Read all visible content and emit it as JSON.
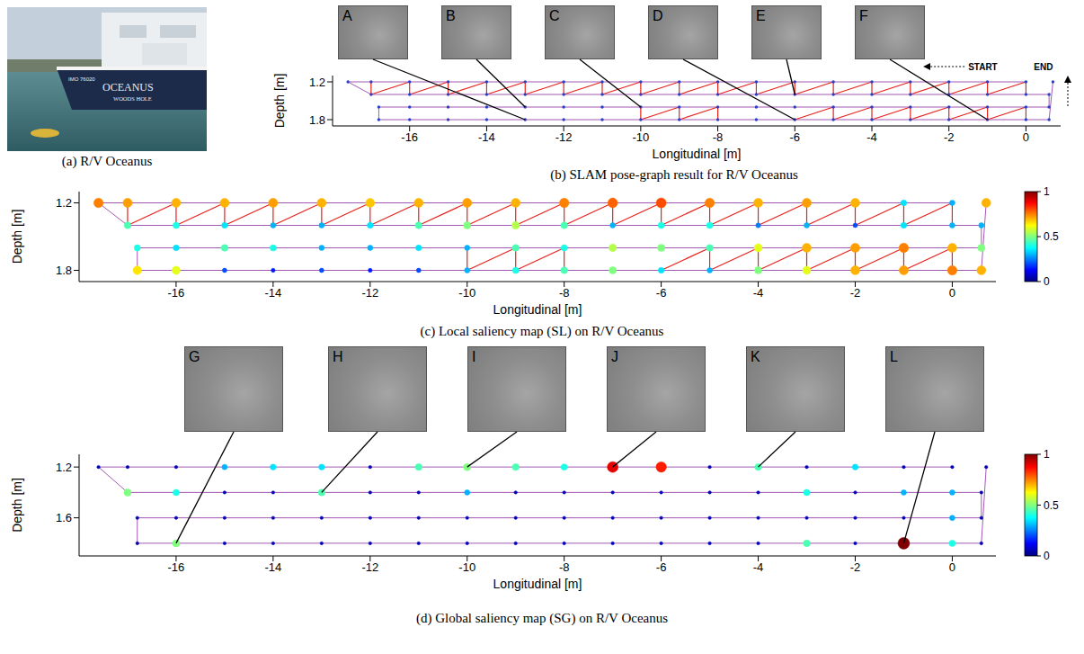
{
  "photo": {
    "caption": "(a) R/V Oceanus",
    "texts": [
      "IMO 76020",
      "OCEANUS",
      "WOODS HOLE"
    ]
  },
  "chart_data": [
    {
      "type": "scatter",
      "caption": "(b) SLAM pose-graph result for R/V Oceanus",
      "x_label": "Longitudinal [m]",
      "y_label": "Depth [m]",
      "xlim": [
        -18,
        0.9
      ],
      "xticks": [
        -16,
        -14,
        -12,
        -10,
        -8,
        -6,
        -4,
        -2,
        0
      ],
      "ylim": [
        1.9,
        1.1
      ],
      "yticks": [
        1.2,
        1.8
      ],
      "x": [
        0,
        -1,
        -2,
        -3,
        -4,
        -5,
        -6,
        -7,
        -8,
        -9,
        -10,
        -11,
        -12,
        -13,
        -14,
        -15,
        -16,
        -17,
        -17.6,
        -17,
        -16,
        -15,
        -14,
        -13,
        -12,
        -11,
        -10,
        -9,
        -8,
        -7,
        -6,
        -5,
        -4,
        -3,
        -2,
        -1,
        0,
        0.6,
        0.6,
        0,
        -1,
        -2,
        -3,
        -4,
        -5,
        -6,
        -7,
        -8,
        -9,
        -10,
        -11,
        -12,
        -13,
        -14,
        -15,
        -16,
        -16.8,
        -16.8,
        -16,
        -15,
        -14,
        -13,
        -12,
        -11,
        -10,
        -9,
        -8,
        -7,
        -6,
        -5,
        -4,
        -3,
        -2,
        -1,
        0,
        0.6,
        0.7
      ],
      "y": [
        1.2,
        1.2,
        1.2,
        1.2,
        1.2,
        1.2,
        1.2,
        1.2,
        1.2,
        1.2,
        1.2,
        1.2,
        1.2,
        1.2,
        1.2,
        1.2,
        1.2,
        1.2,
        1.2,
        1.4,
        1.4,
        1.4,
        1.4,
        1.4,
        1.4,
        1.4,
        1.4,
        1.4,
        1.4,
        1.4,
        1.4,
        1.4,
        1.4,
        1.4,
        1.4,
        1.4,
        1.4,
        1.4,
        1.6,
        1.6,
        1.6,
        1.6,
        1.6,
        1.6,
        1.6,
        1.6,
        1.6,
        1.6,
        1.6,
        1.6,
        1.6,
        1.6,
        1.6,
        1.6,
        1.6,
        1.6,
        1.6,
        1.8,
        1.8,
        1.8,
        1.8,
        1.8,
        1.8,
        1.8,
        1.8,
        1.8,
        1.8,
        1.8,
        1.8,
        1.8,
        1.8,
        1.8,
        1.8,
        1.8,
        1.8,
        1.8,
        1.2
      ],
      "links": [
        [
          0,
          36
        ],
        [
          1,
          35
        ],
        [
          2,
          34
        ],
        [
          3,
          33
        ],
        [
          4,
          32
        ],
        [
          5,
          31
        ],
        [
          6,
          30
        ],
        [
          7,
          29
        ],
        [
          8,
          28
        ],
        [
          9,
          27
        ],
        [
          10,
          26
        ],
        [
          11,
          25
        ],
        [
          12,
          24
        ],
        [
          13,
          23
        ],
        [
          14,
          22
        ],
        [
          15,
          21
        ],
        [
          16,
          20
        ],
        [
          17,
          19
        ],
        [
          0,
          35
        ],
        [
          1,
          34
        ],
        [
          2,
          33
        ],
        [
          3,
          32
        ],
        [
          4,
          31
        ],
        [
          5,
          30
        ],
        [
          6,
          29
        ],
        [
          7,
          28
        ],
        [
          8,
          27
        ],
        [
          9,
          26
        ],
        [
          10,
          25
        ],
        [
          11,
          24
        ],
        [
          12,
          23
        ],
        [
          13,
          22
        ],
        [
          14,
          21
        ],
        [
          15,
          20
        ],
        [
          16,
          19
        ],
        [
          39,
          74
        ],
        [
          40,
          73
        ],
        [
          41,
          72
        ],
        [
          42,
          71
        ],
        [
          43,
          70
        ],
        [
          44,
          69
        ],
        [
          39,
          73
        ],
        [
          40,
          72
        ],
        [
          41,
          71
        ],
        [
          42,
          70
        ],
        [
          43,
          69
        ],
        [
          44,
          68
        ],
        [
          47,
          66
        ],
        [
          48,
          65
        ],
        [
          49,
          64
        ],
        [
          47,
          65
        ],
        [
          48,
          64
        ]
      ],
      "insets": [
        {
          "text": "A",
          "x": -13,
          "y": 1.8
        },
        {
          "text": "B",
          "x": -13,
          "y": 1.6
        },
        {
          "text": "C",
          "x": -10,
          "y": 1.6
        },
        {
          "text": "D",
          "x": -6,
          "y": 1.8
        },
        {
          "text": "E",
          "x": -6,
          "y": 1.4
        },
        {
          "text": "F",
          "x": -1,
          "y": 1.8
        }
      ],
      "annotations": [
        {
          "text": "START",
          "x": -1.5,
          "y": 1.2
        },
        {
          "text": "END",
          "x": 0.7,
          "y": 1.2
        }
      ]
    },
    {
      "type": "scatter",
      "caption": "(c) Local saliency map (SL) on R/V Oceanus",
      "x_label": "Longitudinal [m]",
      "y_label": "Depth [m]",
      "xlim": [
        -18,
        0.9
      ],
      "xticks": [
        -16,
        -14,
        -12,
        -10,
        -8,
        -6,
        -4,
        -2,
        0
      ],
      "ylim": [
        1.9,
        1.1
      ],
      "yticks": [
        1.2,
        1.8
      ],
      "x": [
        0,
        -1,
        -2,
        -3,
        -4,
        -5,
        -6,
        -7,
        -8,
        -9,
        -10,
        -11,
        -12,
        -13,
        -14,
        -15,
        -16,
        -17,
        -17.6,
        -17,
        -16,
        -15,
        -14,
        -13,
        -12,
        -11,
        -10,
        -9,
        -8,
        -7,
        -6,
        -5,
        -4,
        -3,
        -2,
        -1,
        0,
        0.6,
        0.6,
        0,
        -1,
        -2,
        -3,
        -4,
        -5,
        -6,
        -7,
        -8,
        -9,
        -10,
        -11,
        -12,
        -13,
        -14,
        -15,
        -16,
        -16.8,
        -16.8,
        -16,
        -15,
        -14,
        -13,
        -12,
        -11,
        -10,
        -9,
        -8,
        -7,
        -6,
        -5,
        -4,
        -3,
        -2,
        -1,
        0,
        0.6,
        0.7
      ],
      "y": [
        1.2,
        1.2,
        1.2,
        1.2,
        1.2,
        1.2,
        1.2,
        1.2,
        1.2,
        1.2,
        1.2,
        1.2,
        1.2,
        1.2,
        1.2,
        1.2,
        1.2,
        1.2,
        1.2,
        1.4,
        1.4,
        1.4,
        1.4,
        1.4,
        1.4,
        1.4,
        1.4,
        1.4,
        1.4,
        1.4,
        1.4,
        1.4,
        1.4,
        1.4,
        1.4,
        1.4,
        1.4,
        1.4,
        1.6,
        1.6,
        1.6,
        1.6,
        1.6,
        1.6,
        1.6,
        1.6,
        1.6,
        1.6,
        1.6,
        1.6,
        1.6,
        1.6,
        1.6,
        1.6,
        1.6,
        1.6,
        1.6,
        1.8,
        1.8,
        1.8,
        1.8,
        1.8,
        1.8,
        1.8,
        1.8,
        1.8,
        1.8,
        1.8,
        1.8,
        1.8,
        1.8,
        1.8,
        1.8,
        1.8,
        1.8,
        1.8,
        1.2
      ],
      "links": [
        [
          0,
          36
        ],
        [
          1,
          35
        ],
        [
          2,
          34
        ],
        [
          3,
          33
        ],
        [
          4,
          32
        ],
        [
          5,
          31
        ],
        [
          6,
          30
        ],
        [
          7,
          29
        ],
        [
          8,
          28
        ],
        [
          9,
          27
        ],
        [
          10,
          26
        ],
        [
          11,
          25
        ],
        [
          12,
          24
        ],
        [
          13,
          23
        ],
        [
          14,
          22
        ],
        [
          15,
          21
        ],
        [
          16,
          20
        ],
        [
          17,
          19
        ],
        [
          0,
          35
        ],
        [
          1,
          34
        ],
        [
          2,
          33
        ],
        [
          3,
          32
        ],
        [
          4,
          31
        ],
        [
          5,
          30
        ],
        [
          6,
          29
        ],
        [
          7,
          28
        ],
        [
          8,
          27
        ],
        [
          9,
          26
        ],
        [
          10,
          25
        ],
        [
          11,
          24
        ],
        [
          12,
          23
        ],
        [
          13,
          22
        ],
        [
          14,
          21
        ],
        [
          15,
          20
        ],
        [
          16,
          19
        ],
        [
          39,
          74
        ],
        [
          40,
          73
        ],
        [
          41,
          72
        ],
        [
          42,
          71
        ],
        [
          43,
          70
        ],
        [
          44,
          69
        ],
        [
          39,
          73
        ],
        [
          40,
          72
        ],
        [
          41,
          71
        ],
        [
          42,
          70
        ],
        [
          43,
          69
        ],
        [
          44,
          68
        ],
        [
          47,
          66
        ],
        [
          48,
          65
        ],
        [
          49,
          64
        ],
        [
          47,
          65
        ],
        [
          48,
          64
        ]
      ],
      "saliency": [
        0.3,
        0.35,
        0.7,
        0.72,
        0.7,
        0.75,
        0.8,
        0.78,
        0.75,
        0.7,
        0.72,
        0.7,
        0.68,
        0.7,
        0.72,
        0.7,
        0.7,
        0.72,
        0.75,
        0.45,
        0.4,
        0.35,
        0.3,
        0.3,
        0.35,
        0.45,
        0.5,
        0.55,
        0.45,
        0.3,
        0.4,
        0.4,
        0.25,
        0.3,
        0.2,
        0.35,
        0.3,
        0.3,
        0.5,
        0.7,
        0.75,
        0.72,
        0.7,
        0.6,
        0.45,
        0.5,
        0.55,
        0.4,
        0.45,
        0.3,
        0.35,
        0.3,
        0.3,
        0.4,
        0.45,
        0.35,
        0.4,
        0.65,
        0.6,
        0.2,
        0.15,
        0.2,
        0.15,
        0.2,
        0.3,
        0.4,
        0.45,
        0.5,
        0.35,
        0.3,
        0.5,
        0.6,
        0.7,
        0.72,
        0.75,
        0.7,
        0.7
      ],
      "colorbar": {
        "range": [
          0,
          1
        ],
        "ticks": [
          0,
          0.5,
          1
        ]
      }
    },
    {
      "type": "scatter",
      "caption": "(d) Global saliency map (SG) on R/V Oceanus",
      "x_label": "Longitudinal [m]",
      "y_label": "Depth [m]",
      "xlim": [
        -18,
        0.9
      ],
      "xticks": [
        -16,
        -14,
        -12,
        -10,
        -8,
        -6,
        -4,
        -2,
        0
      ],
      "ylim": [
        1.9,
        1.1
      ],
      "yticks": [
        1.2,
        1.6
      ],
      "x": [
        0,
        -1,
        -2,
        -3,
        -4,
        -5,
        -6,
        -7,
        -8,
        -9,
        -10,
        -11,
        -12,
        -13,
        -14,
        -15,
        -16,
        -17,
        -17.6,
        -17,
        -16,
        -15,
        -14,
        -13,
        -12,
        -11,
        -10,
        -9,
        -8,
        -7,
        -6,
        -5,
        -4,
        -3,
        -2,
        -1,
        0,
        0.6,
        0.6,
        0,
        -1,
        -2,
        -3,
        -4,
        -5,
        -6,
        -7,
        -8,
        -9,
        -10,
        -11,
        -12,
        -13,
        -14,
        -15,
        -16,
        -16.8,
        -16.8,
        -16,
        -15,
        -14,
        -13,
        -12,
        -11,
        -10,
        -9,
        -8,
        -7,
        -6,
        -5,
        -4,
        -3,
        -2,
        -1,
        0,
        0.6,
        0.7
      ],
      "y": [
        1.2,
        1.2,
        1.2,
        1.2,
        1.2,
        1.2,
        1.2,
        1.2,
        1.2,
        1.2,
        1.2,
        1.2,
        1.2,
        1.2,
        1.2,
        1.2,
        1.2,
        1.2,
        1.2,
        1.4,
        1.4,
        1.4,
        1.4,
        1.4,
        1.4,
        1.4,
        1.4,
        1.4,
        1.4,
        1.4,
        1.4,
        1.4,
        1.4,
        1.4,
        1.4,
        1.4,
        1.4,
        1.4,
        1.6,
        1.6,
        1.6,
        1.6,
        1.6,
        1.6,
        1.6,
        1.6,
        1.6,
        1.6,
        1.6,
        1.6,
        1.6,
        1.6,
        1.6,
        1.6,
        1.6,
        1.6,
        1.6,
        1.8,
        1.8,
        1.8,
        1.8,
        1.8,
        1.8,
        1.8,
        1.8,
        1.8,
        1.8,
        1.8,
        1.8,
        1.8,
        1.8,
        1.8,
        1.8,
        1.8,
        1.8,
        1.8,
        1.2
      ],
      "saliency": [
        0.05,
        0.05,
        0.35,
        0.05,
        0.45,
        0.05,
        0.85,
        0.9,
        0.4,
        0.45,
        0.5,
        0.45,
        0.05,
        0.35,
        0.35,
        0.3,
        0.05,
        0.05,
        0.05,
        0.5,
        0.4,
        0.05,
        0.05,
        0.45,
        0.05,
        0.05,
        0.3,
        0.05,
        0.05,
        0.05,
        0.05,
        0.05,
        0.05,
        0.4,
        0.05,
        0.3,
        0.3,
        0.05,
        0.05,
        0.3,
        0.05,
        0.05,
        0.05,
        0.05,
        0.05,
        0.05,
        0.05,
        0.05,
        0.05,
        0.05,
        0.05,
        0.05,
        0.05,
        0.05,
        0.05,
        0.05,
        0.05,
        0.05,
        0.5,
        0.05,
        0.05,
        0.05,
        0.05,
        0.05,
        0.05,
        0.05,
        0.05,
        0.05,
        0.05,
        0.05,
        0.05,
        0.45,
        0.05,
        1.0,
        0.4,
        0.05,
        0.05
      ],
      "colorbar": {
        "range": [
          0,
          1
        ],
        "ticks": [
          0,
          0.5,
          1
        ]
      },
      "insets": [
        {
          "text": "G",
          "x": -16,
          "y": 1.8
        },
        {
          "text": "H",
          "x": -13,
          "y": 1.4
        },
        {
          "text": "I",
          "x": -10,
          "y": 1.2
        },
        {
          "text": "J",
          "x": -7,
          "y": 1.2
        },
        {
          "text": "K",
          "x": -4,
          "y": 1.2
        },
        {
          "text": "L",
          "x": -1,
          "y": 1.8
        }
      ]
    }
  ]
}
